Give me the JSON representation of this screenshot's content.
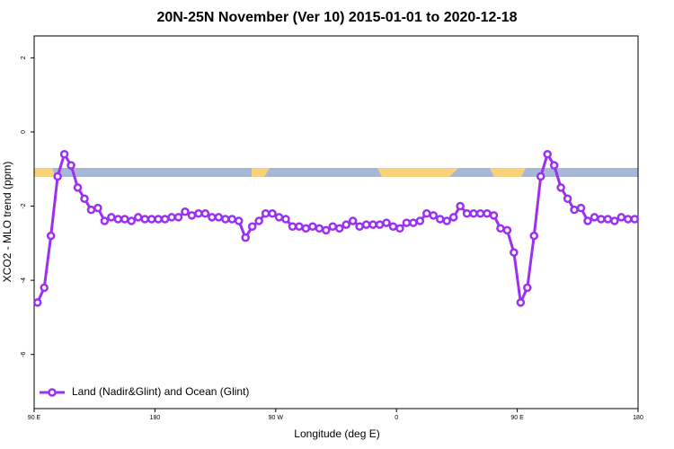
{
  "chart_data": {
    "type": "line",
    "title": "20N-25N November (Ver 10)   2015-01-01 to 2020-12-18",
    "x_label": "Longitude (deg E)",
    "y_label": "XCO2 - MLO trend (ppm)",
    "xlim": [
      90,
      540
    ],
    "ylim": [
      -7.46,
      2.59
    ],
    "xticks": [
      {
        "value": 90,
        "label": "90 E"
      },
      180,
      {
        "value": 270,
        "label": "90 W"
      },
      {
        "value": 360,
        "label": "0"
      },
      {
        "value": 450,
        "label": "90 E"
      },
      {
        "value": 540,
        "label": "180"
      }
    ],
    "yticks": [
      2,
      0,
      -2,
      -4,
      -6
    ],
    "legend": "bottom-left",
    "x": [
      92.5,
      97.5,
      102.5,
      107.5,
      112.5,
      117.5,
      122.5,
      127.5,
      132.5,
      137.5,
      142.5,
      147.5,
      152.5,
      157.5,
      162.5,
      167.5,
      172.5,
      177.5,
      182.5,
      187.5,
      192.5,
      197.5,
      202.5,
      207.5,
      212.5,
      217.5,
      222.5,
      227.5,
      232.5,
      237.5,
      242.5,
      247.5,
      252.5,
      257.5,
      262.5,
      267.5,
      272.5,
      277.5,
      282.5,
      287.5,
      292.5,
      297.5,
      302.5,
      307.5,
      312.5,
      317.5,
      322.5,
      327.5,
      332.5,
      337.5,
      342.5,
      347.5,
      352.5,
      357.5,
      362.5,
      367.5,
      372.5,
      377.5,
      382.5,
      387.5,
      392.5,
      397.5,
      402.5,
      407.5,
      412.5,
      417.5,
      422.5,
      427.5,
      432.5,
      437.5,
      442.5,
      447.5,
      452.5,
      457.5,
      462.5,
      467.5,
      472.5,
      477.5,
      482.5,
      487.5,
      492.5,
      497.5,
      502.5,
      507.5,
      512.5,
      517.5,
      522.5,
      527.5,
      532.5,
      537.5
    ],
    "series": [
      {
        "name": "Land (Nadir&Glint) and Ocean (Glint)",
        "color": "#9b30f0",
        "values": [
          -4.6,
          -4.2,
          -2.8,
          -1.2,
          -0.6,
          -0.9,
          -1.5,
          -1.8,
          -2.1,
          -2.05,
          -2.4,
          -2.3,
          -2.35,
          -2.35,
          -2.4,
          -2.3,
          -2.35,
          -2.35,
          -2.35,
          -2.35,
          -2.3,
          -2.3,
          -2.15,
          -2.25,
          -2.2,
          -2.2,
          -2.3,
          -2.3,
          -2.35,
          -2.35,
          -2.4,
          -2.85,
          -2.55,
          -2.4,
          -2.2,
          -2.2,
          -2.3,
          -2.35,
          -2.55,
          -2.55,
          -2.6,
          -2.55,
          -2.6,
          -2.65,
          -2.55,
          -2.6,
          -2.5,
          -2.4,
          -2.55,
          -2.5,
          -2.5,
          -2.5,
          -2.45,
          -2.55,
          -2.6,
          -2.45,
          -2.45,
          -2.4,
          -2.2,
          -2.25,
          -2.35,
          -2.4,
          -2.3,
          -2.0,
          -2.2,
          -2.2,
          -2.2,
          -2.2,
          -2.25,
          -2.6,
          -2.65,
          -3.25,
          -4.6,
          -4.2,
          -2.8,
          -1.2,
          -0.6,
          -0.9,
          -1.5,
          -1.8,
          -2.1,
          -2.05,
          -2.4,
          -2.3,
          -2.35,
          -2.35,
          -2.4,
          -2.3,
          -2.35,
          -2.35
        ]
      }
    ]
  }
}
